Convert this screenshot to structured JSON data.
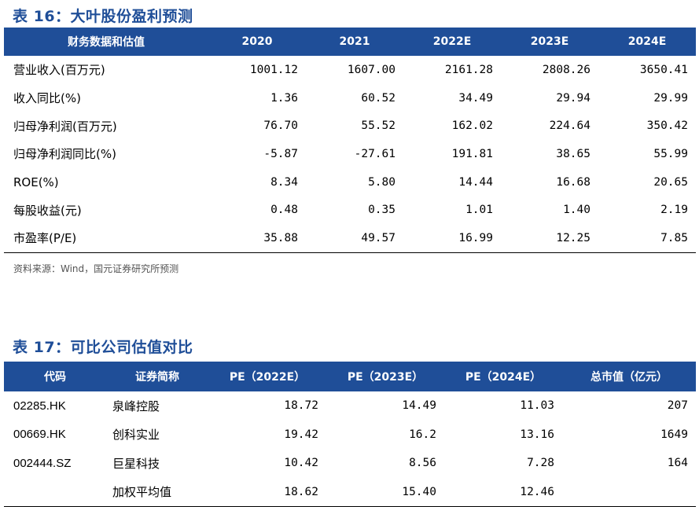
{
  "table16": {
    "title": "表 16：大叶股份盈利预测",
    "headers": [
      "财务数据和估值",
      "2020",
      "2021",
      "2022E",
      "2023E",
      "2024E"
    ],
    "rows": [
      {
        "label": "营业收入(百万元)",
        "values": [
          "1001.12",
          "1607.00",
          "2161.28",
          "2808.26",
          "3650.41"
        ]
      },
      {
        "label": "收入同比(%)",
        "values": [
          "1.36",
          "60.52",
          "34.49",
          "29.94",
          "29.99"
        ]
      },
      {
        "label": "归母净利润(百万元)",
        "values": [
          "76.70",
          "55.52",
          "162.02",
          "224.64",
          "350.42"
        ]
      },
      {
        "label": "归母净利润同比(%)",
        "values": [
          "-5.87",
          "-27.61",
          "191.81",
          "38.65",
          "55.99"
        ]
      },
      {
        "label": "ROE(%)",
        "values": [
          "8.34",
          "5.80",
          "14.44",
          "16.68",
          "20.65"
        ]
      },
      {
        "label": "每股收益(元)",
        "values": [
          "0.48",
          "0.35",
          "1.01",
          "1.40",
          "2.19"
        ]
      },
      {
        "label": "市盈率(P/E)",
        "values": [
          "35.88",
          "49.57",
          "16.99",
          "12.25",
          "7.85"
        ]
      }
    ],
    "source": "资料来源：Wind，国元证券研究所预测"
  },
  "table17": {
    "title": "表 17：可比公司估值对比",
    "headers": [
      "代码",
      "证券简称",
      "PE（2022E）",
      "PE（2023E）",
      "PE（2024E）",
      "总市值（亿元）"
    ],
    "rows": [
      {
        "code": "02285.HK",
        "name": "泉峰控股",
        "values": [
          "18.72",
          "14.49",
          "11.03",
          "207"
        ]
      },
      {
        "code": "00669.HK",
        "name": "创科实业",
        "values": [
          "19.42",
          "16.2",
          "13.16",
          "1649"
        ]
      },
      {
        "code": "002444.SZ",
        "name": "巨星科技",
        "values": [
          "10.42",
          "8.56",
          "7.28",
          "164"
        ]
      },
      {
        "code": "",
        "name": "加权平均值",
        "values": [
          "18.62",
          "15.40",
          "12.46",
          ""
        ]
      }
    ]
  }
}
